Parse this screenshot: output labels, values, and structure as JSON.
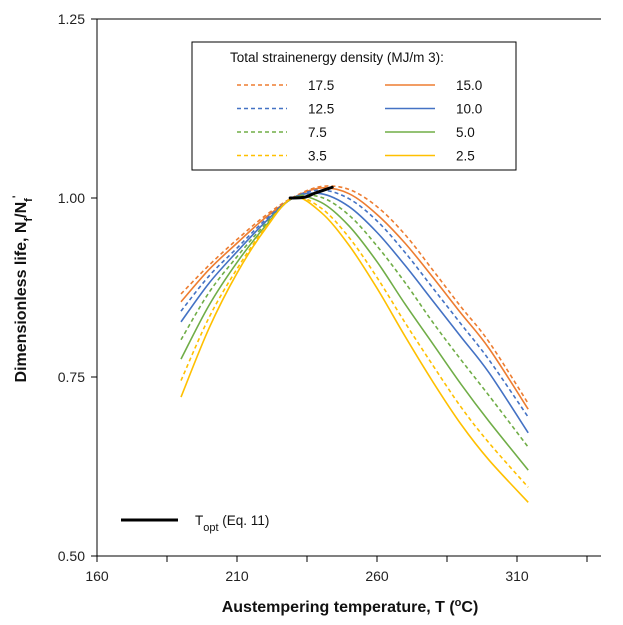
{
  "chart_data": {
    "type": "line",
    "xlabel": "Austempering temperature, T (°C)",
    "ylabel": "Dimensionless life, N_f/N_f'",
    "xlim": [
      160,
      340
    ],
    "ylim": [
      0.5,
      1.25
    ],
    "xticks": [
      "160",
      "210",
      "260",
      "310"
    ],
    "yticks": [
      "0.50",
      "0.75",
      "1.00",
      "1.25"
    ],
    "grid": false,
    "legend_title": "Total strainenergy density (MJ/m 3):",
    "legend_position": "top-right",
    "series": [
      {
        "name": "17.5",
        "color": "#ED7D31",
        "dashed": true,
        "x": [
          190,
          200,
          210,
          220,
          230,
          240,
          250,
          260,
          270,
          280,
          290,
          300,
          314
        ],
        "y": [
          0.866,
          0.906,
          0.942,
          0.975,
          1.001,
          1.016,
          1.012,
          0.988,
          0.949,
          0.899,
          0.848,
          0.799,
          0.713
        ]
      },
      {
        "name": "15.0",
        "color": "#ED7D31",
        "dashed": false,
        "x": [
          190,
          200,
          210,
          220,
          230,
          240,
          250,
          260,
          270,
          280,
          290,
          300,
          314
        ],
        "y": [
          0.855,
          0.9,
          0.937,
          0.972,
          1.0,
          1.014,
          1.006,
          0.977,
          0.937,
          0.889,
          0.839,
          0.79,
          0.705
        ]
      },
      {
        "name": "12.5",
        "color": "#4472C4",
        "dashed": true,
        "x": [
          190,
          200,
          210,
          220,
          230,
          240,
          250,
          260,
          270,
          280,
          290,
          300,
          314
        ],
        "y": [
          0.842,
          0.891,
          0.93,
          0.969,
          1.0,
          1.011,
          0.999,
          0.968,
          0.924,
          0.874,
          0.824,
          0.774,
          0.694
        ]
      },
      {
        "name": "10.0",
        "color": "#4472C4",
        "dashed": false,
        "x": [
          190,
          200,
          210,
          220,
          230,
          240,
          250,
          260,
          270,
          280,
          290,
          300,
          314
        ],
        "y": [
          0.827,
          0.881,
          0.925,
          0.966,
          1.0,
          1.006,
          0.988,
          0.952,
          0.906,
          0.856,
          0.806,
          0.756,
          0.672
        ]
      },
      {
        "name": "7.5",
        "color": "#70AD47",
        "dashed": true,
        "x": [
          190,
          200,
          210,
          220,
          230,
          240,
          250,
          260,
          270,
          280,
          290,
          300,
          314
        ],
        "y": [
          0.802,
          0.868,
          0.918,
          0.963,
          1.0,
          1.001,
          0.976,
          0.933,
          0.882,
          0.826,
          0.774,
          0.724,
          0.652
        ]
      },
      {
        "name": "5.0",
        "color": "#70AD47",
        "dashed": false,
        "x": [
          190,
          200,
          210,
          220,
          230,
          240,
          250,
          260,
          270,
          280,
          290,
          300,
          314
        ],
        "y": [
          0.775,
          0.85,
          0.91,
          0.96,
          1.0,
          0.994,
          0.961,
          0.911,
          0.852,
          0.796,
          0.74,
          0.688,
          0.62
        ]
      },
      {
        "name": "3.5",
        "color": "#FFC000",
        "dashed": true,
        "x": [
          190,
          200,
          210,
          220,
          230,
          240,
          250,
          260,
          270,
          280,
          290,
          300,
          314
        ],
        "y": [
          0.745,
          0.833,
          0.901,
          0.958,
          1.0,
          0.986,
          0.945,
          0.889,
          0.826,
          0.766,
          0.708,
          0.658,
          0.596
        ]
      },
      {
        "name": "2.5",
        "color": "#FFC000",
        "dashed": false,
        "x": [
          190,
          200,
          210,
          220,
          230,
          240,
          250,
          260,
          270,
          280,
          290,
          300,
          314
        ],
        "y": [
          0.722,
          0.818,
          0.895,
          0.956,
          1.0,
          0.98,
          0.934,
          0.874,
          0.807,
          0.743,
          0.684,
          0.634,
          0.575
        ]
      }
    ],
    "topt": {
      "name": "T_opt (Eq. 11)",
      "color": "#000000",
      "x": [
        229,
        234,
        238,
        244
      ],
      "y": [
        1.0,
        1.001,
        1.007,
        1.015
      ]
    }
  }
}
